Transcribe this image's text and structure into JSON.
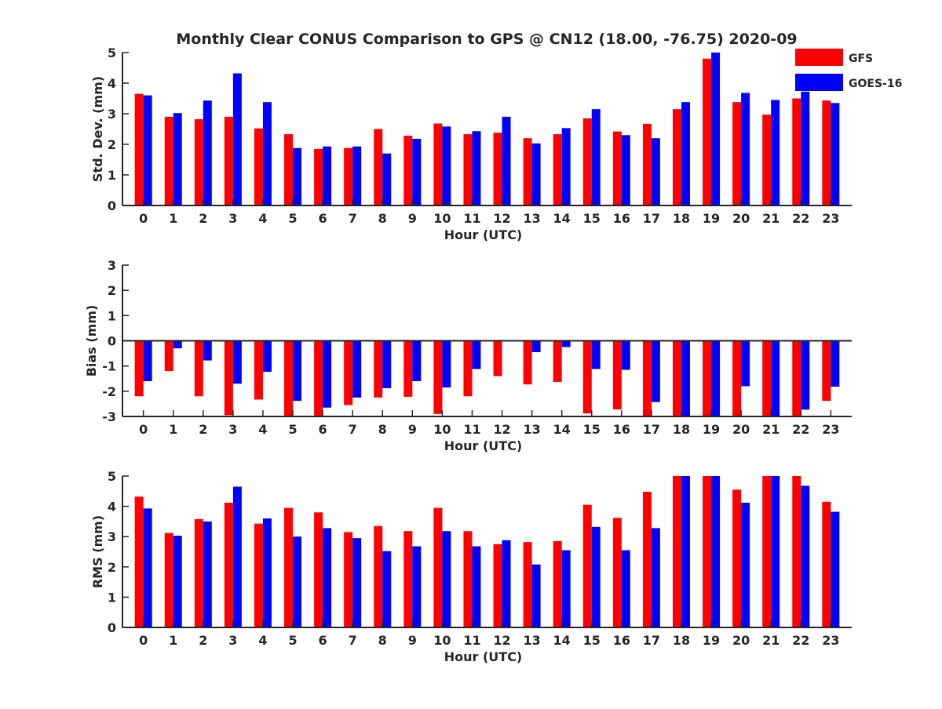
{
  "chart_data": [
    {
      "type": "bar",
      "title": "Monthly Clear CONUS Comparison to GPS @ CN12 (18.00, -76.75) 2020-09",
      "xlabel": "Hour (UTC)",
      "ylabel": "Std. Dev. (mm)",
      "ylim": [
        0,
        5
      ],
      "yticks": [
        0,
        1,
        2,
        3,
        4,
        5
      ],
      "categories": [
        "0",
        "1",
        "2",
        "3",
        "4",
        "5",
        "6",
        "7",
        "8",
        "9",
        "10",
        "11",
        "12",
        "13",
        "14",
        "15",
        "16",
        "17",
        "18",
        "19",
        "20",
        "21",
        "22",
        "23"
      ],
      "series": [
        {
          "name": "GFS",
          "color": "#ff0000",
          "values": [
            3.65,
            2.9,
            2.82,
            2.9,
            2.52,
            2.33,
            1.85,
            1.88,
            2.5,
            2.28,
            2.68,
            2.33,
            2.38,
            2.2,
            2.33,
            2.85,
            2.42,
            2.67,
            3.15,
            4.8,
            3.38,
            2.97,
            3.5,
            3.43
          ]
        },
        {
          "name": "GOES-16",
          "color": "#0000ff",
          "values": [
            3.6,
            3.02,
            3.43,
            4.32,
            3.38,
            1.88,
            1.93,
            1.93,
            1.7,
            2.18,
            2.58,
            2.43,
            2.9,
            2.03,
            2.53,
            3.15,
            2.3,
            2.2,
            3.38,
            5.0,
            3.68,
            3.45,
            3.72,
            3.35
          ]
        }
      ],
      "legend": {
        "position": "top-right",
        "entries": [
          "GFS",
          "GOES-16"
        ]
      },
      "grid": false
    },
    {
      "type": "bar",
      "xlabel": "Hour (UTC)",
      "ylabel": "Bias (mm)",
      "ylim": [
        -3,
        3
      ],
      "yticks": [
        -3,
        -2,
        -1,
        0,
        1,
        2,
        3
      ],
      "categories": [
        "0",
        "1",
        "2",
        "3",
        "4",
        "5",
        "6",
        "7",
        "8",
        "9",
        "10",
        "11",
        "12",
        "13",
        "14",
        "15",
        "16",
        "17",
        "18",
        "19",
        "20",
        "21",
        "22",
        "23"
      ],
      "series": [
        {
          "name": "GFS",
          "color": "#ff0000",
          "values": [
            -2.2,
            -1.2,
            -2.2,
            -2.95,
            -2.33,
            -3.1,
            -3.1,
            -2.55,
            -2.25,
            -2.22,
            -2.9,
            -2.2,
            -1.4,
            -1.73,
            -1.63,
            -2.88,
            -2.72,
            -3.1,
            -3.1,
            -3.1,
            -3.1,
            -3.1,
            -3.1,
            -2.38
          ]
        },
        {
          "name": "GOES-16",
          "color": "#0000ff",
          "values": [
            -1.6,
            -0.3,
            -0.78,
            -1.7,
            -1.23,
            -2.38,
            -2.65,
            -2.25,
            -1.88,
            -1.6,
            -1.85,
            -1.12,
            0,
            -0.45,
            -0.25,
            -1.12,
            -1.15,
            -2.43,
            -3.1,
            -3.1,
            -1.8,
            -3.1,
            -2.73,
            -1.82
          ]
        }
      ],
      "grid": false
    },
    {
      "type": "bar",
      "xlabel": "Hour (UTC)",
      "ylabel": "RMS (mm)",
      "ylim": [
        0,
        5
      ],
      "yticks": [
        0,
        1,
        2,
        3,
        4,
        5
      ],
      "categories": [
        "0",
        "1",
        "2",
        "3",
        "4",
        "5",
        "6",
        "7",
        "8",
        "9",
        "10",
        "11",
        "12",
        "13",
        "14",
        "15",
        "16",
        "17",
        "18",
        "19",
        "20",
        "21",
        "22",
        "23"
      ],
      "series": [
        {
          "name": "GFS",
          "color": "#ff0000",
          "values": [
            4.32,
            3.12,
            3.58,
            4.12,
            3.43,
            3.95,
            3.8,
            3.15,
            3.35,
            3.18,
            3.95,
            3.18,
            2.75,
            2.82,
            2.85,
            4.05,
            3.62,
            4.48,
            5.0,
            5.0,
            4.55,
            5.0,
            5.0,
            4.15
          ]
        },
        {
          "name": "GOES-16",
          "color": "#0000ff",
          "values": [
            3.93,
            3.03,
            3.5,
            4.65,
            3.6,
            3.0,
            3.28,
            2.95,
            2.52,
            2.68,
            3.18,
            2.68,
            2.88,
            2.08,
            2.55,
            3.32,
            2.55,
            3.28,
            5.0,
            5.0,
            4.12,
            5.0,
            4.68,
            3.82
          ]
        }
      ],
      "grid": false
    }
  ]
}
